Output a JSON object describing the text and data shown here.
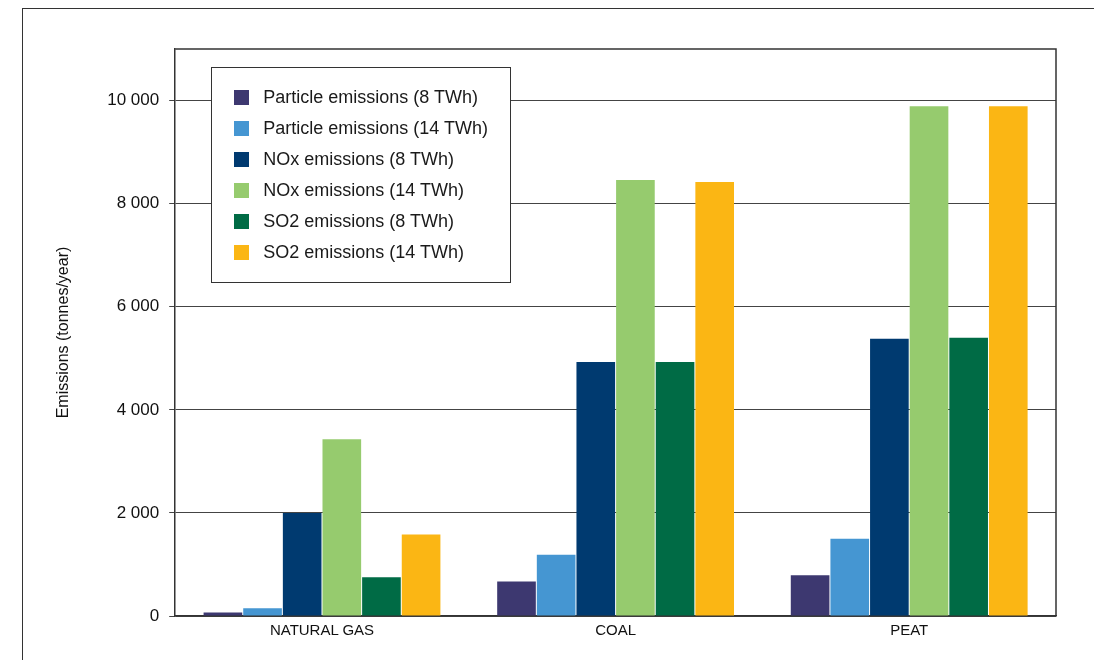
{
  "chart_data": {
    "type": "bar",
    "ylabel": "Emissions (tonnes/year)",
    "categories": [
      "NATURAL GAS",
      "COAL",
      "PEAT"
    ],
    "series": [
      {
        "name": "Particle emissions (8 TWh)",
        "color": "#3d3870",
        "values": [
          70,
          670,
          790
        ]
      },
      {
        "name": "Particle emissions (14 TWh)",
        "color": "#4596d2",
        "values": [
          150,
          1190,
          1500
        ]
      },
      {
        "name": "NOx emissions (8 TWh)",
        "color": "#003a70",
        "values": [
          2000,
          4930,
          5380
        ]
      },
      {
        "name": "NOx emissions (14 TWh)",
        "color": "#96cb6e",
        "values": [
          3430,
          8460,
          9890
        ]
      },
      {
        "name": "SO2 emissions (8 TWh)",
        "color": "#006b45",
        "values": [
          750,
          4930,
          5400
        ]
      },
      {
        "name": "SO2 emissions (14 TWh)",
        "color": "#fbb614",
        "values": [
          1580,
          8420,
          9890
        ]
      }
    ],
    "ylim": [
      0,
      11000
    ],
    "yticks": [
      0,
      {
        "value": 2000,
        "label": "2 000"
      },
      {
        "value": 4000,
        "label": "4 000"
      },
      {
        "value": 6000,
        "label": "6 000"
      },
      {
        "value": 8000,
        "label": "8 000"
      },
      {
        "value": 10000,
        "label": "10 000"
      }
    ],
    "grid": "y",
    "legend": "top left"
  }
}
